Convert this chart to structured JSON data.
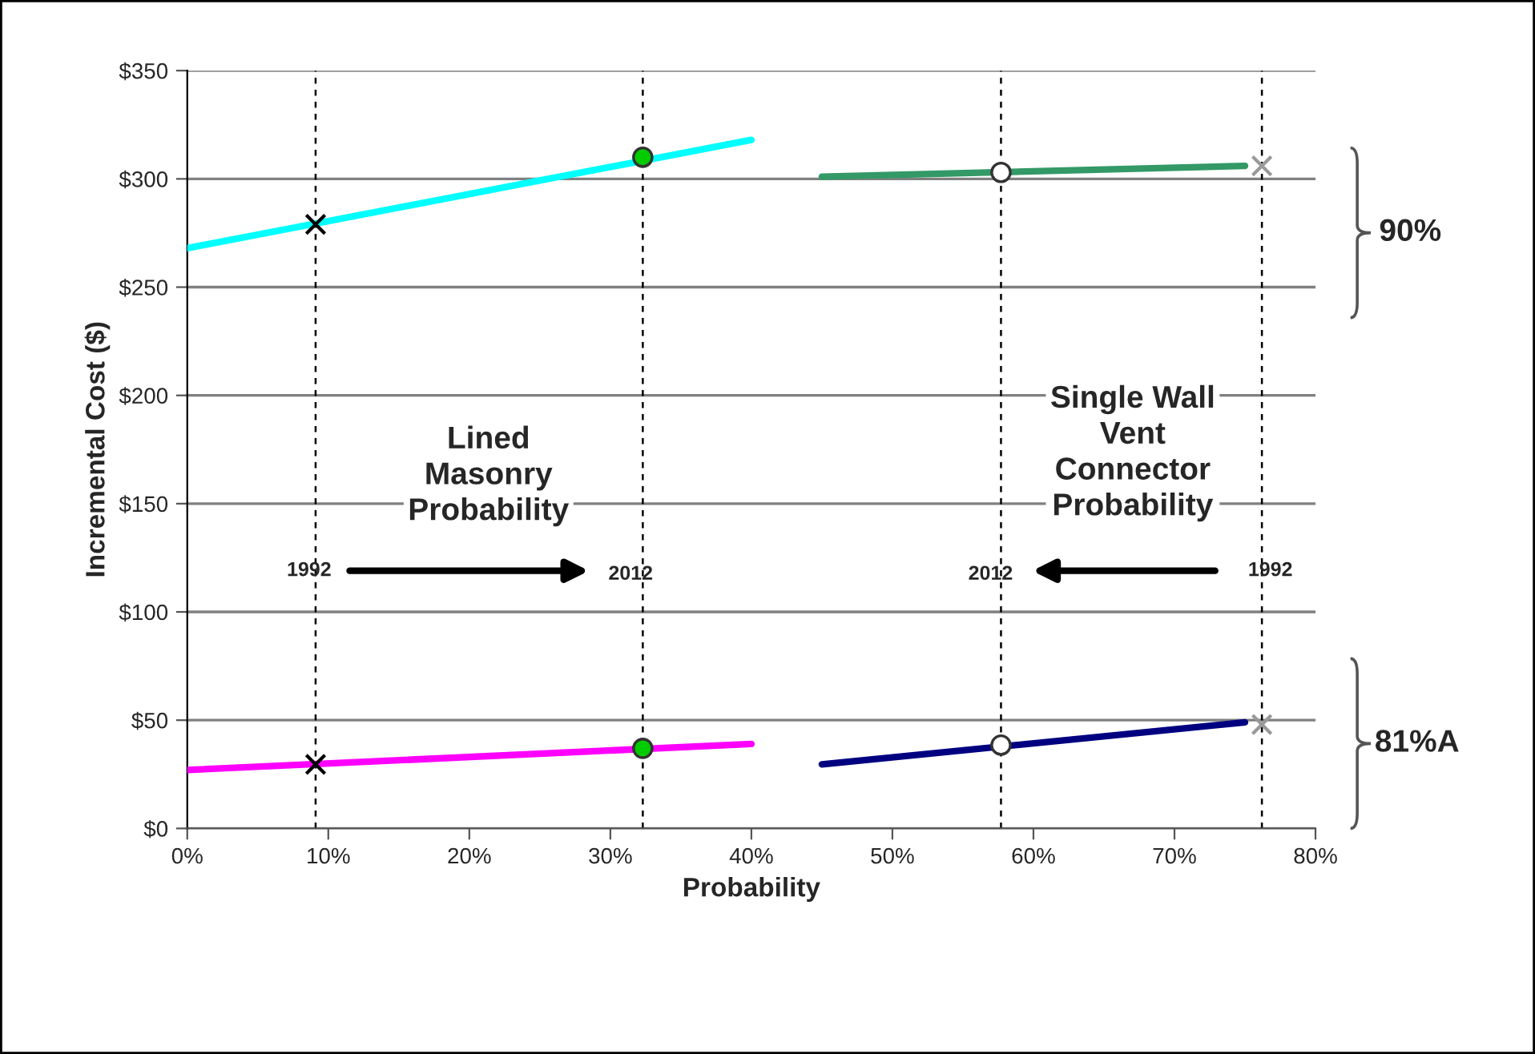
{
  "chart_data": {
    "type": "line",
    "xlabel": "Probability",
    "ylabel": "Incremental Cost ($)",
    "xlim": [
      0,
      80
    ],
    "ylim": [
      0,
      350
    ],
    "xticks": [
      {
        "value": 0,
        "label": "0%"
      },
      {
        "value": 10,
        "label": "10%"
      },
      {
        "value": 20,
        "label": "20%"
      },
      {
        "value": 30,
        "label": "30%"
      },
      {
        "value": 40,
        "label": "40%"
      },
      {
        "value": 50,
        "label": "50%"
      },
      {
        "value": 60,
        "label": "60%"
      },
      {
        "value": 70,
        "label": "70%"
      },
      {
        "value": 80,
        "label": "80%"
      }
    ],
    "yticks": [
      {
        "value": 0,
        "label": "$0"
      },
      {
        "value": 50,
        "label": "$50"
      },
      {
        "value": 100,
        "label": "$100"
      },
      {
        "value": 150,
        "label": "$150"
      },
      {
        "value": 200,
        "label": "$200"
      },
      {
        "value": 250,
        "label": "$250"
      },
      {
        "value": 300,
        "label": "$300"
      },
      {
        "value": 350,
        "label": "$350"
      }
    ],
    "grid": "y",
    "legend": false,
    "series": [
      {
        "color": "#00ffff",
        "x": [
          0,
          40
        ],
        "values": [
          268,
          318
        ]
      },
      {
        "color": "#339966",
        "x": [
          45,
          75
        ],
        "values": [
          301,
          306
        ]
      },
      {
        "color": "#ff00ff",
        "x": [
          0,
          40
        ],
        "values": [
          27,
          39
        ]
      },
      {
        "color": "#000080",
        "x": [
          45,
          75
        ],
        "values": [
          29.6,
          49
        ]
      },
      {
        "type": "scatter",
        "marker": "cross",
        "color": "#000000",
        "x": [
          9.1,
          9.1
        ],
        "values": [
          279,
          29.6
        ]
      },
      {
        "type": "scatter",
        "marker": "circle",
        "color": "#00cc00",
        "x": [
          32.3,
          32.3
        ],
        "values": [
          310,
          37
        ]
      },
      {
        "type": "scatter",
        "marker": "circle",
        "color": "#ffffff",
        "x": [
          57.7,
          57.7
        ],
        "values": [
          303,
          38.5
        ]
      },
      {
        "type": "scatter",
        "marker": "cross",
        "color": "#999999",
        "x": [
          76.2,
          76.2
        ],
        "values": [
          306,
          48
        ]
      }
    ],
    "ref_lines": [
      {
        "axis": "x",
        "value": 9.1,
        "line_style": "dashed",
        "color": "#000000"
      },
      {
        "axis": "x",
        "value": 32.3,
        "line_style": "dashed",
        "color": "#000000"
      },
      {
        "axis": "x",
        "value": 57.7,
        "line_style": "dashed",
        "color": "#000000"
      },
      {
        "axis": "x",
        "value": 76.2,
        "line_style": "dashed",
        "color": "#000000"
      }
    ],
    "annotations": [
      "Lined\nMasonry\nProbability",
      "Single Wall\nVent\nConnector\nProbability",
      "1992",
      "2012",
      "2012",
      "1992",
      "90%",
      "81%A"
    ]
  }
}
